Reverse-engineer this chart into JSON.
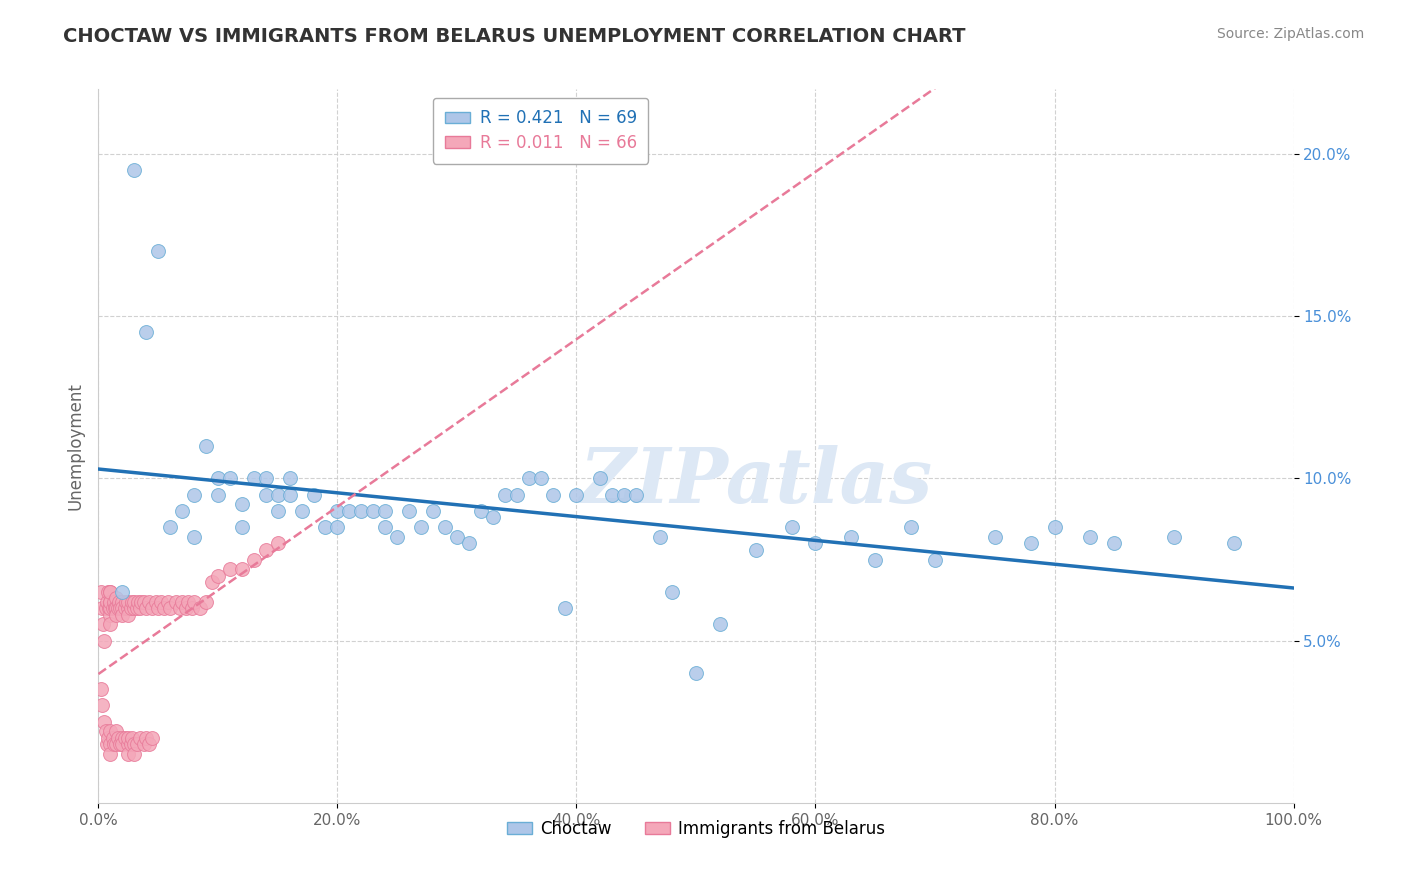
{
  "title": "CHOCTAW VS IMMIGRANTS FROM BELARUS UNEMPLOYMENT CORRELATION CHART",
  "source_text": "Source: ZipAtlas.com",
  "ylabel": "Unemployment",
  "watermark": "ZIPatlas",
  "xlim": [
    0.0,
    1.0
  ],
  "ylim": [
    0.0,
    0.22
  ],
  "xticks": [
    0.0,
    0.2,
    0.4,
    0.6,
    0.8,
    1.0
  ],
  "xtick_labels": [
    "0.0%",
    "20.0%",
    "40.0%",
    "60.0%",
    "80.0%",
    "100.0%"
  ],
  "yticks": [
    0.05,
    0.1,
    0.15,
    0.2
  ],
  "ytick_labels": [
    "5.0%",
    "10.0%",
    "15.0%",
    "20.0%"
  ],
  "bottom_legend": [
    {
      "label": "Choctaw",
      "color": "#aec6e8"
    },
    {
      "label": "Immigrants from Belarus",
      "color": "#f4a7b9"
    }
  ],
  "choctaw_x": [
    0.02,
    0.03,
    0.04,
    0.05,
    0.06,
    0.07,
    0.08,
    0.08,
    0.09,
    0.1,
    0.1,
    0.11,
    0.12,
    0.12,
    0.13,
    0.14,
    0.14,
    0.15,
    0.15,
    0.16,
    0.16,
    0.17,
    0.18,
    0.19,
    0.2,
    0.2,
    0.21,
    0.22,
    0.23,
    0.24,
    0.24,
    0.25,
    0.26,
    0.27,
    0.28,
    0.29,
    0.3,
    0.31,
    0.32,
    0.33,
    0.34,
    0.35,
    0.36,
    0.37,
    0.38,
    0.39,
    0.4,
    0.42,
    0.43,
    0.44,
    0.45,
    0.47,
    0.48,
    0.5,
    0.52,
    0.55,
    0.58,
    0.6,
    0.63,
    0.65,
    0.68,
    0.7,
    0.75,
    0.78,
    0.8,
    0.83,
    0.85,
    0.9,
    0.95
  ],
  "choctaw_y": [
    0.065,
    0.195,
    0.145,
    0.17,
    0.085,
    0.09,
    0.095,
    0.082,
    0.11,
    0.1,
    0.095,
    0.1,
    0.085,
    0.092,
    0.1,
    0.095,
    0.1,
    0.095,
    0.09,
    0.095,
    0.1,
    0.09,
    0.095,
    0.085,
    0.09,
    0.085,
    0.09,
    0.09,
    0.09,
    0.085,
    0.09,
    0.082,
    0.09,
    0.085,
    0.09,
    0.085,
    0.082,
    0.08,
    0.09,
    0.088,
    0.095,
    0.095,
    0.1,
    0.1,
    0.095,
    0.06,
    0.095,
    0.1,
    0.095,
    0.095,
    0.095,
    0.082,
    0.065,
    0.04,
    0.055,
    0.078,
    0.085,
    0.08,
    0.082,
    0.075,
    0.085,
    0.075,
    0.082,
    0.08,
    0.085,
    0.082,
    0.08,
    0.082,
    0.08
  ],
  "belarus_x": [
    0.002,
    0.003,
    0.004,
    0.005,
    0.006,
    0.007,
    0.008,
    0.009,
    0.01,
    0.01,
    0.01,
    0.01,
    0.01,
    0.01,
    0.01,
    0.012,
    0.013,
    0.014,
    0.015,
    0.015,
    0.015,
    0.016,
    0.017,
    0.018,
    0.02,
    0.02,
    0.02,
    0.022,
    0.023,
    0.025,
    0.025,
    0.025,
    0.027,
    0.028,
    0.03,
    0.03,
    0.032,
    0.033,
    0.035,
    0.036,
    0.038,
    0.04,
    0.042,
    0.045,
    0.048,
    0.05,
    0.052,
    0.055,
    0.058,
    0.06,
    0.065,
    0.068,
    0.07,
    0.073,
    0.075,
    0.078,
    0.08,
    0.085,
    0.09,
    0.095,
    0.1,
    0.11,
    0.12,
    0.13,
    0.14,
    0.15
  ],
  "belarus_y": [
    0.065,
    0.06,
    0.055,
    0.05,
    0.06,
    0.062,
    0.065,
    0.06,
    0.062,
    0.065,
    0.058,
    0.055,
    0.06,
    0.062,
    0.065,
    0.06,
    0.062,
    0.06,
    0.063,
    0.06,
    0.058,
    0.06,
    0.062,
    0.06,
    0.062,
    0.06,
    0.058,
    0.06,
    0.062,
    0.06,
    0.062,
    0.058,
    0.06,
    0.062,
    0.06,
    0.062,
    0.06,
    0.062,
    0.06,
    0.062,
    0.062,
    0.06,
    0.062,
    0.06,
    0.062,
    0.06,
    0.062,
    0.06,
    0.062,
    0.06,
    0.062,
    0.06,
    0.062,
    0.06,
    0.062,
    0.06,
    0.062,
    0.06,
    0.062,
    0.068,
    0.07,
    0.072,
    0.072,
    0.075,
    0.078,
    0.08
  ],
  "belarus_low_x": [
    0.002,
    0.003,
    0.005,
    0.006,
    0.007,
    0.008,
    0.01,
    0.01,
    0.01,
    0.012,
    0.013,
    0.015,
    0.015,
    0.016,
    0.018,
    0.02,
    0.02,
    0.022,
    0.025,
    0.025,
    0.025,
    0.027,
    0.028,
    0.03,
    0.03,
    0.032,
    0.035,
    0.038,
    0.04,
    0.042,
    0.045
  ],
  "belarus_low_y": [
    0.035,
    0.03,
    0.025,
    0.022,
    0.018,
    0.02,
    0.022,
    0.018,
    0.015,
    0.02,
    0.018,
    0.022,
    0.018,
    0.02,
    0.018,
    0.02,
    0.018,
    0.02,
    0.018,
    0.02,
    0.015,
    0.018,
    0.02,
    0.018,
    0.015,
    0.018,
    0.02,
    0.018,
    0.02,
    0.018,
    0.02
  ],
  "choctaw_color": "#aec6e8",
  "choctaw_edge_color": "#6aaed6",
  "belarus_color": "#f4a7b9",
  "belarus_edge_color": "#e87a99",
  "trend_choctaw_color": "#2171b5",
  "trend_belarus_color": "#e87a99",
  "background_color": "#ffffff",
  "grid_color": "#cccccc",
  "title_color": "#333333",
  "source_color": "#888888",
  "watermark_color": "#dde8f5",
  "choctaw_R": 0.421,
  "choctaw_N": 69,
  "belarus_R": 0.011,
  "belarus_N": 66
}
